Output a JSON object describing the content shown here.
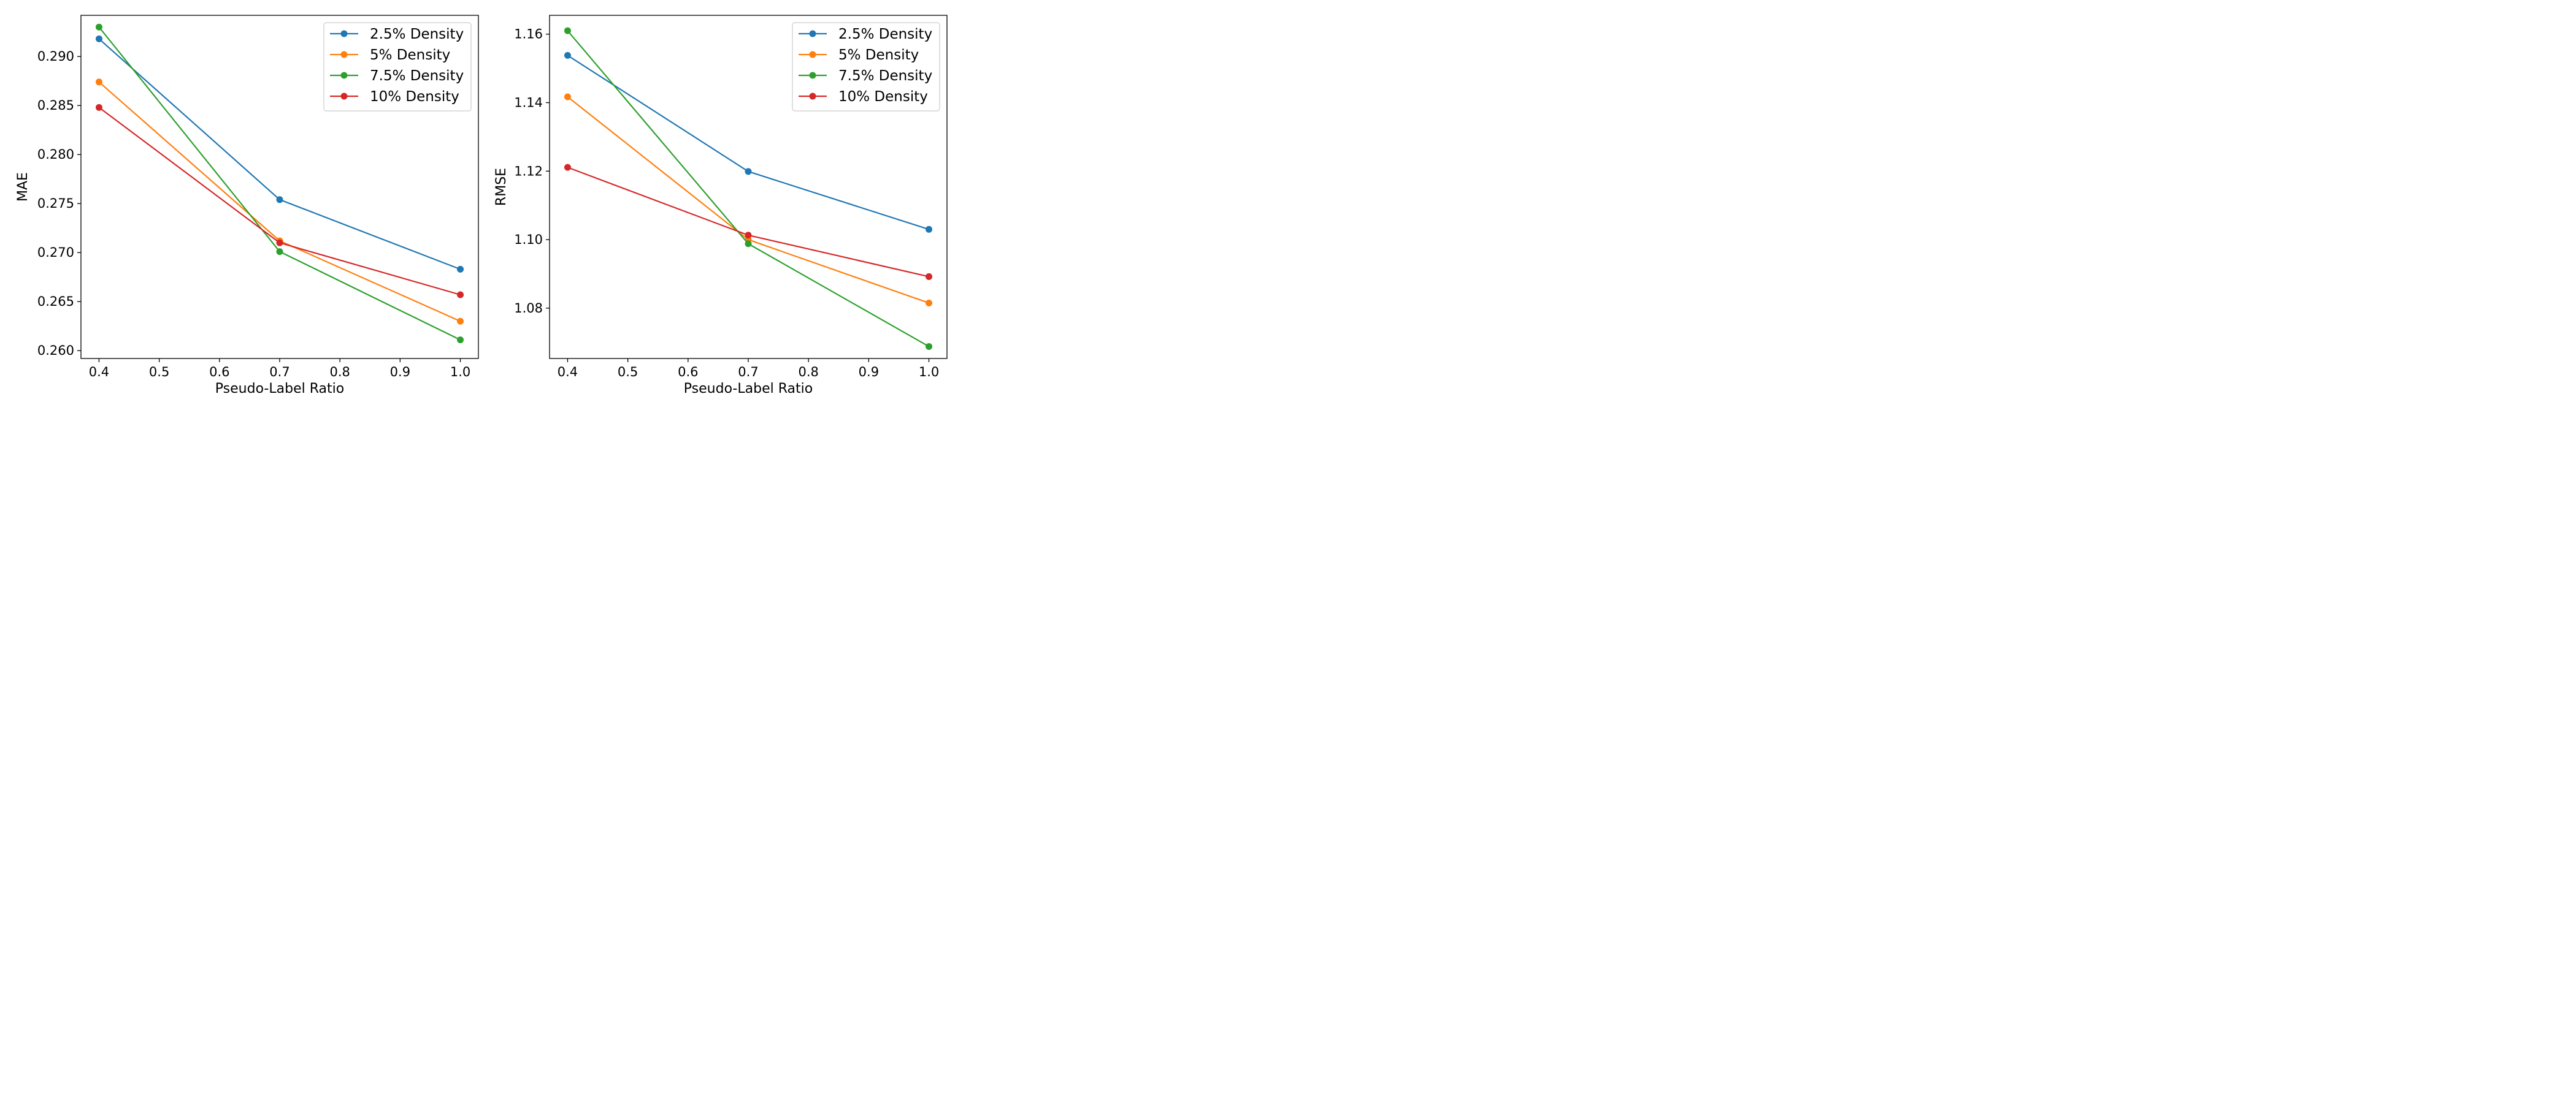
{
  "chart_data": [
    {
      "type": "line",
      "xlabel": "Pseudo-Label Ratio",
      "ylabel": "MAE",
      "x": [
        0.4,
        0.7,
        1.0
      ],
      "xlim": [
        0.37,
        1.03
      ],
      "ylim": [
        0.2592,
        0.2942
      ],
      "xticks": [
        0.4,
        0.5,
        0.6,
        0.7,
        0.8,
        0.9,
        1.0
      ],
      "xtick_labels": [
        "0.4",
        "0.5",
        "0.6",
        "0.7",
        "0.8",
        "0.9",
        "1.0"
      ],
      "yticks": [
        0.26,
        0.265,
        0.27,
        0.275,
        0.28,
        0.285,
        0.29
      ],
      "ytick_labels": [
        "0.260",
        "0.265",
        "0.270",
        "0.275",
        "0.280",
        "0.285",
        "0.290"
      ],
      "legend_position": "top-right",
      "grid": false,
      "series": [
        {
          "name": "2.5% Density",
          "color": "#1f77b4",
          "values": [
            0.2918,
            0.2754,
            0.2683
          ]
        },
        {
          "name": "5% Density",
          "color": "#ff7f0e",
          "values": [
            0.2874,
            0.2712,
            0.263
          ]
        },
        {
          "name": "7.5% Density",
          "color": "#2ca02c",
          "values": [
            0.293,
            0.2701,
            0.2611
          ]
        },
        {
          "name": "10% Density",
          "color": "#d62728",
          "values": [
            0.2848,
            0.271,
            0.2657
          ]
        }
      ]
    },
    {
      "type": "line",
      "xlabel": "Pseudo-Label Ratio",
      "ylabel": "RMSE",
      "x": [
        0.4,
        0.7,
        1.0
      ],
      "xlim": [
        0.37,
        1.03
      ],
      "ylim": [
        1.0653,
        1.1655
      ],
      "xticks": [
        0.4,
        0.5,
        0.6,
        0.7,
        0.8,
        0.9,
        1.0
      ],
      "xtick_labels": [
        "0.4",
        "0.5",
        "0.6",
        "0.7",
        "0.8",
        "0.9",
        "1.0"
      ],
      "yticks": [
        1.08,
        1.1,
        1.12,
        1.14,
        1.16
      ],
      "ytick_labels": [
        "1.08",
        "1.10",
        "1.12",
        "1.14",
        "1.16"
      ],
      "legend_position": "top-right",
      "grid": false,
      "series": [
        {
          "name": "2.5% Density",
          "color": "#1f77b4",
          "values": [
            1.1538,
            1.1199,
            1.103
          ]
        },
        {
          "name": "5% Density",
          "color": "#ff7f0e",
          "values": [
            1.1417,
            1.1,
            1.0815
          ]
        },
        {
          "name": "7.5% Density",
          "color": "#2ca02c",
          "values": [
            1.161,
            1.0988,
            1.0688
          ]
        },
        {
          "name": "10% Density",
          "color": "#d62728",
          "values": [
            1.1211,
            1.1013,
            1.0892
          ]
        }
      ]
    }
  ]
}
